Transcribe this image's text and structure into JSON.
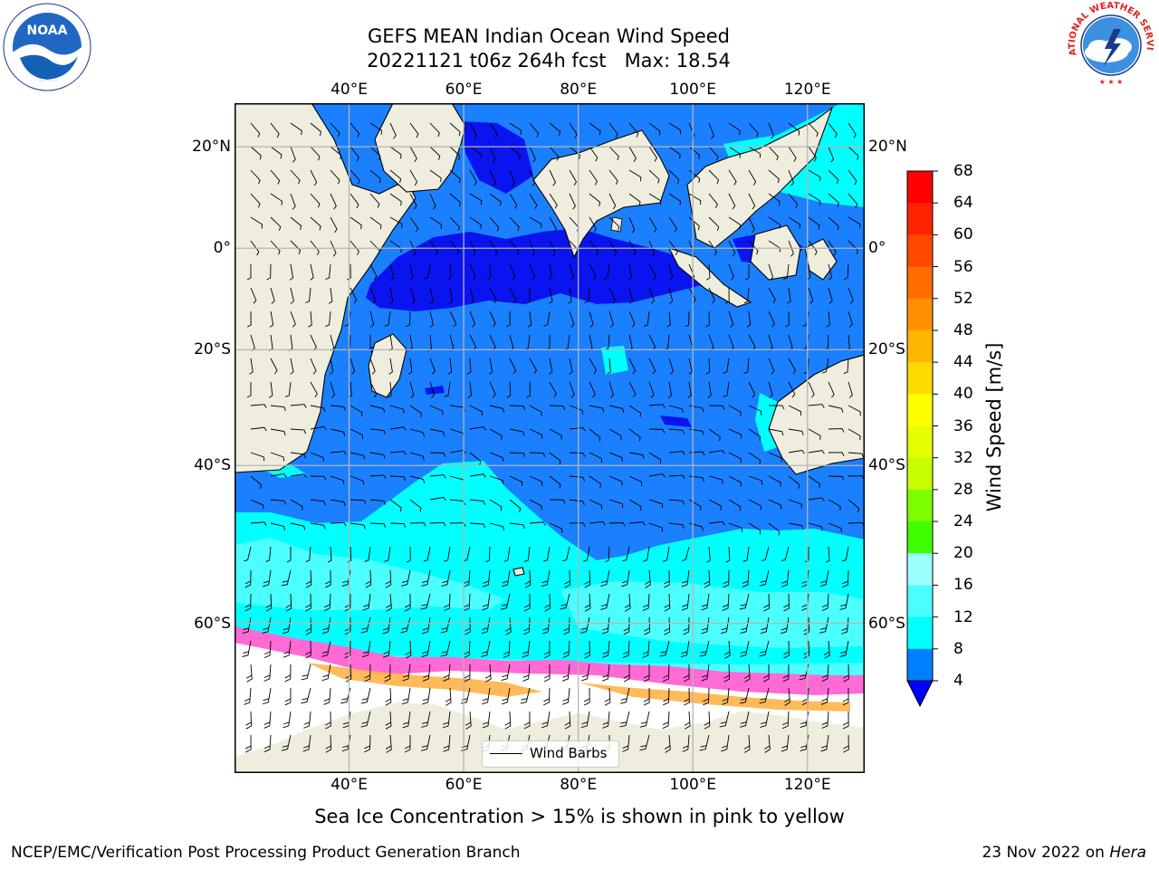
{
  "title": {
    "line1": "GEFS MEAN Indian Ocean Wind Speed",
    "line2": "20221121 t06z 264h fcst   Max: 18.54"
  },
  "axes": {
    "lon_labels": [
      "40°E",
      "60°E",
      "80°E",
      "100°E",
      "120°E"
    ],
    "lat_labels": [
      "20°N",
      "0°",
      "20°S",
      "40°S",
      "60°S"
    ],
    "lon_values": [
      40,
      60,
      80,
      100,
      120
    ],
    "lat_values": [
      20,
      0,
      -20,
      -40,
      -60
    ]
  },
  "colorbar": {
    "label": "Wind Speed [m/s]",
    "ticks": [
      "68",
      "64",
      "60",
      "56",
      "52",
      "48",
      "44",
      "40",
      "36",
      "32",
      "28",
      "24",
      "20",
      "16",
      "12",
      "8",
      "4"
    ],
    "colors": [
      "#ff0000",
      "#ff2400",
      "#ff4800",
      "#ff6d00",
      "#ff9100",
      "#ffb600",
      "#ffda00",
      "#ffff00",
      "#e4ff00",
      "#c8ff00",
      "#7dff00",
      "#3dff00",
      "#00e000",
      "#4cff7a",
      "#9effff",
      "#4cffff",
      "#00ffff",
      "#0080ff",
      "#0000ff"
    ],
    "extend": "min"
  },
  "legend": {
    "label": "Wind Barbs"
  },
  "note": "Sea Ice Concentration > 15% is shown in pink to yellow",
  "footer": {
    "left": "NCEP/EMC/Verification Post Processing Product Generation Branch",
    "right_prefix": "23 Nov 2022 on ",
    "right_host": "Hera"
  },
  "logos": {
    "left": "NOAA",
    "right": "NATIONAL WEATHER SERVICE"
  },
  "map_colors": {
    "land": "#efedde",
    "ocean_4_8": "#1a80ff",
    "ocean_lt4": "#0a14f0",
    "ocean_8_12": "#00ffff",
    "ocean_12_16": "#4cffff",
    "ice_pink": "#ff6ad5",
    "ice_orange": "#ffb347",
    "grid": "#b5b5b5"
  }
}
